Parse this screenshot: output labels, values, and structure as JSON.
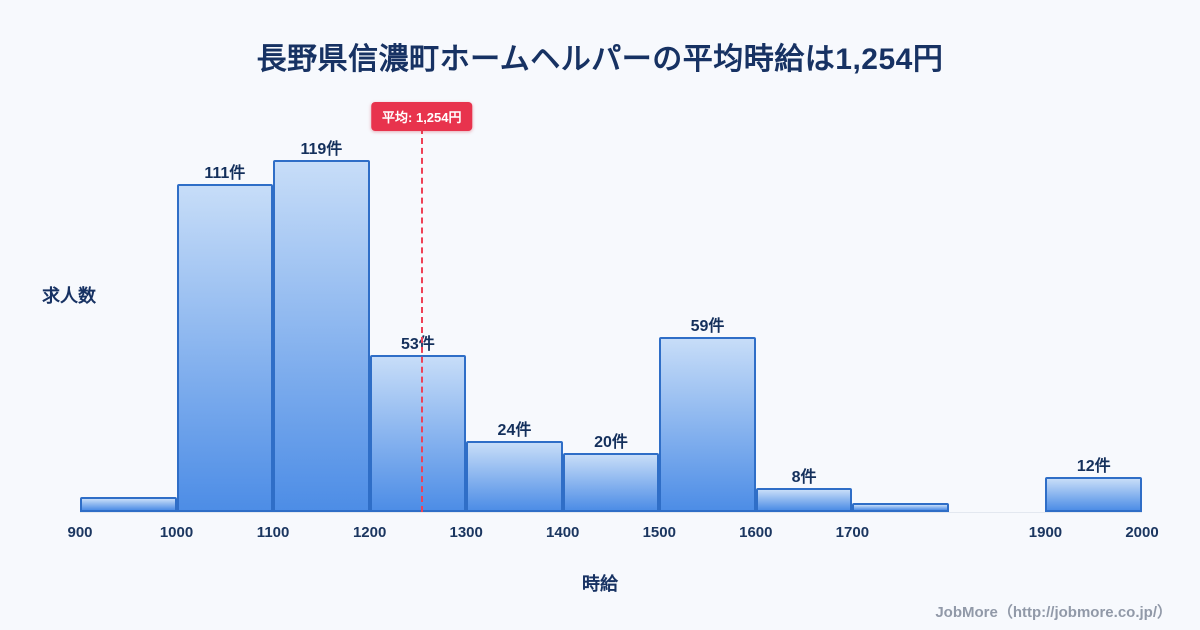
{
  "page": {
    "footer": "JobMore（http://jobmore.co.jp/）"
  },
  "chart_data": {
    "type": "bar",
    "title": "長野県信濃町ホームヘルパーの平均時給は1,254円",
    "xlabel": "時給",
    "ylabel": "求人数",
    "x_range": [
      900,
      2000
    ],
    "x_ticks": [
      900,
      1000,
      1100,
      1200,
      1300,
      1400,
      1500,
      1600,
      1700,
      1900,
      2000
    ],
    "ylim": [
      0,
      130
    ],
    "grid": false,
    "legend": "none",
    "bins": [
      {
        "start": 900,
        "end": 1000,
        "value": 5,
        "label": ""
      },
      {
        "start": 1000,
        "end": 1100,
        "value": 111,
        "label": "111件"
      },
      {
        "start": 1100,
        "end": 1200,
        "value": 119,
        "label": "119件"
      },
      {
        "start": 1200,
        "end": 1300,
        "value": 53,
        "label": "53件"
      },
      {
        "start": 1300,
        "end": 1400,
        "value": 24,
        "label": "24件"
      },
      {
        "start": 1400,
        "end": 1500,
        "value": 20,
        "label": "20件"
      },
      {
        "start": 1500,
        "end": 1600,
        "value": 59,
        "label": "59件"
      },
      {
        "start": 1600,
        "end": 1700,
        "value": 8,
        "label": "8件"
      },
      {
        "start": 1700,
        "end": 1800,
        "value": 3,
        "label": ""
      },
      {
        "start": 1900,
        "end": 2000,
        "value": 12,
        "label": "12件"
      }
    ],
    "average": {
      "value": 1254,
      "label": "平均: 1,254円"
    },
    "colors": {
      "bar_gradient_top": "#c7ddf8",
      "bar_gradient_bottom": "#4d8de6",
      "bar_border": "#2f6ec7",
      "average_line": "#ef4056",
      "average_badge_bg": "#e8334d",
      "title_text": "#173263",
      "footer_text": "#9199a8",
      "background": "#f7f9fd"
    }
  }
}
